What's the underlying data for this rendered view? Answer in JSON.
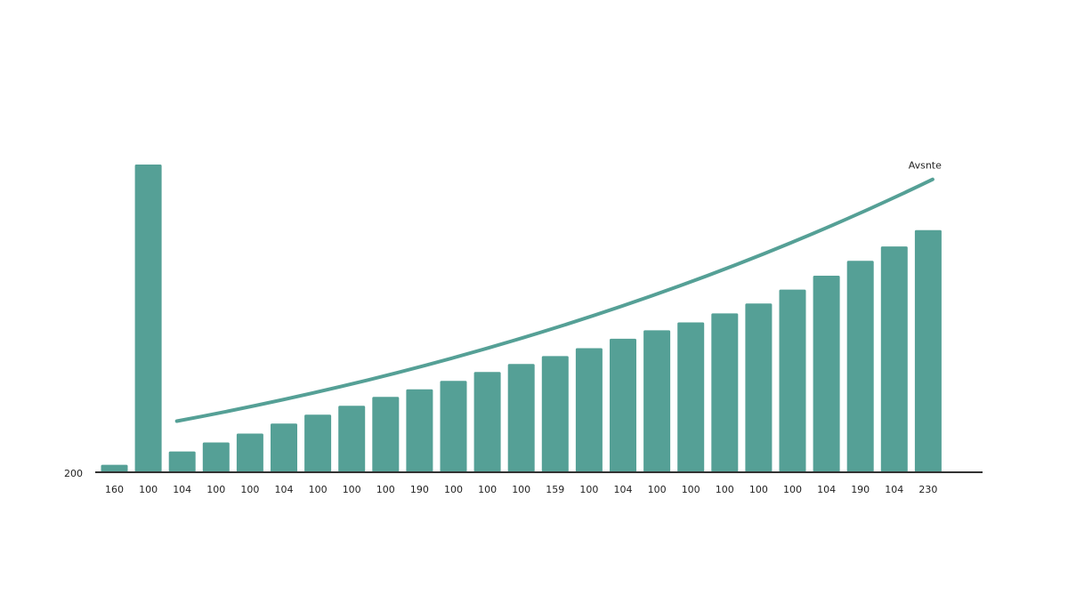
{
  "chart_data": {
    "type": "bar",
    "title": "",
    "xlabel": "",
    "ylabel": "",
    "categories": [
      "160",
      "100",
      "104",
      "100",
      "100",
      "104",
      "100",
      "100",
      "100",
      "190",
      "100",
      "100",
      "100",
      "159",
      "100",
      "104",
      "100",
      "100",
      "100",
      "100",
      "100",
      "104",
      "190",
      "104",
      "230"
    ],
    "values": [
      1.5,
      62,
      4.2,
      6,
      7.8,
      9.8,
      11.6,
      13.4,
      15.2,
      16.7,
      18.4,
      20.2,
      21.8,
      23.4,
      25,
      26.9,
      28.6,
      30.2,
      32,
      34,
      36.8,
      39.6,
      42.6,
      45.5,
      48.8
    ],
    "color": "#55a096",
    "ylim": [
      0,
      62
    ],
    "y_tick_label": "200",
    "trend": {
      "label": "Avsnte",
      "color": "#55a096",
      "start_index": 2,
      "end_index": 24,
      "start_value": 10.3,
      "end_value": 59
    },
    "grid": false,
    "legend": "none"
  }
}
